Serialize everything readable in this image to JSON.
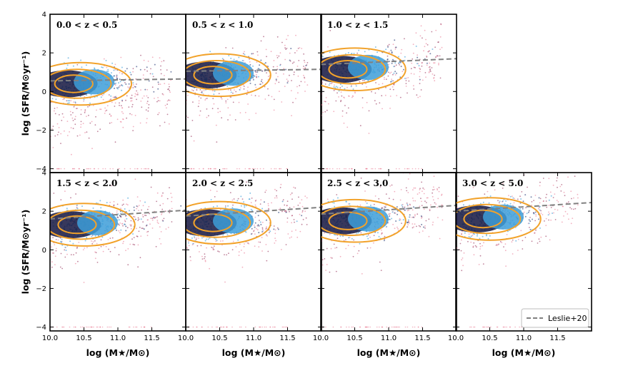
{
  "chart_data": {
    "type": "scatter",
    "xlabel": "log (M★/M⊙)",
    "ylabel": "log (SFR/M⊙yr⁻¹)",
    "xlim": [
      10.0,
      12.0
    ],
    "ylim": [
      -4.2,
      4.0
    ],
    "x_ticks": [
      "10.0",
      "10.5",
      "11.0",
      "11.5"
    ],
    "x_tick_values": [
      10.0,
      10.5,
      11.0,
      11.5
    ],
    "y_ticks": [
      "4",
      "2",
      "0",
      "−2",
      "−4"
    ],
    "y_tick_values": [
      4,
      2,
      0,
      -2,
      -4
    ],
    "legend": {
      "label": "Leslie+20",
      "placement": "lower-right"
    },
    "colors": {
      "star_forming_light": "#3d9ed8",
      "star_forming_dark": "#2a3e78",
      "core_dark": "#14153f",
      "quiescent_light": "#e8708a",
      "quiescent_dark": "#8e1f4a",
      "contour": "#f2a22a",
      "leslie_line": "#808080"
    },
    "panels": [
      {
        "label": "0.0 < z < 0.5",
        "leslie20": [
          [
            10.0,
            0.55
          ],
          [
            12.0,
            0.65
          ]
        ],
        "sf_center": [
          10.4,
          0.4
        ],
        "q_offset": -2.2
      },
      {
        "label": "0.5 < z < 1.0",
        "leslie20": [
          [
            10.0,
            1.05
          ],
          [
            12.0,
            1.15
          ]
        ],
        "sf_center": [
          10.45,
          0.85
        ],
        "q_offset": -1.7
      },
      {
        "label": "1.0 < z < 1.5",
        "leslie20": [
          [
            10.0,
            1.4
          ],
          [
            12.0,
            1.7
          ]
        ],
        "sf_center": [
          10.45,
          1.15
        ],
        "q_offset": -1.6
      },
      {
        "label": "1.5 < z < 2.0",
        "leslie20": [
          [
            10.0,
            1.6
          ],
          [
            12.0,
            2.05
          ]
        ],
        "sf_center": [
          10.45,
          1.3
        ],
        "q_offset": -1.5
      },
      {
        "label": "2.0 < z < 2.5",
        "leslie20": [
          [
            10.0,
            1.75
          ],
          [
            12.0,
            2.2
          ]
        ],
        "sf_center": [
          10.45,
          1.4
        ],
        "q_offset": -1.4
      },
      {
        "label": "2.5 < z < 3.0",
        "leslie20": [
          [
            10.0,
            1.85
          ],
          [
            12.0,
            2.3
          ]
        ],
        "sf_center": [
          10.45,
          1.5
        ],
        "q_offset": -1.3
      },
      {
        "label": "3.0 < z < 5.0",
        "leslie20": [
          [
            10.0,
            2.0
          ],
          [
            12.0,
            2.45
          ]
        ],
        "sf_center": [
          10.45,
          1.6
        ],
        "q_offset": -1.2
      }
    ]
  }
}
